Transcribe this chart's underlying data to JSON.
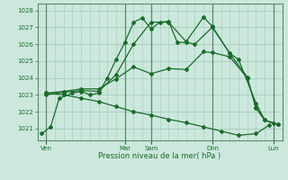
{
  "title": "",
  "xlabel": "Pression niveau de la mer( hPa )",
  "ylabel": "",
  "bg_color": "#cce8dd",
  "grid_color": "#aacfbf",
  "line_color": "#1a6b2a",
  "ylim": [
    1020.3,
    1028.4
  ],
  "xlim": [
    0,
    28
  ],
  "yticks": [
    1021,
    1022,
    1023,
    1024,
    1025,
    1026,
    1027,
    1028
  ],
  "xtick_positions": [
    1,
    10,
    13,
    20,
    27
  ],
  "xtick_labels": [
    "Ven",
    "Mar",
    "Sam",
    "Dim",
    "Lun"
  ],
  "vlines": [
    1,
    10,
    13,
    20,
    27
  ],
  "lines": [
    [
      0.5,
      1020.7,
      1.5,
      1021.1,
      2.5,
      1022.8,
      4,
      1023.1,
      5,
      1023.2,
      6,
      1023.0,
      7,
      1023.1,
      8,
      1024.0,
      9,
      1025.1,
      10,
      1026.1,
      11,
      1027.3,
      12,
      1027.55,
      13,
      1026.9,
      14,
      1027.3,
      15,
      1027.35,
      16,
      1026.1,
      17,
      1026.1,
      18,
      1026.0,
      20,
      1027.0,
      22,
      1025.45,
      23,
      1025.1,
      25,
      1022.5,
      26,
      1021.5,
      27,
      1021.3
    ],
    [
      1,
      1023.0,
      3,
      1023.15,
      5,
      1023.25,
      7,
      1023.2,
      9,
      1024.2,
      11,
      1026.0,
      13,
      1027.3,
      15,
      1027.3,
      17,
      1026.15,
      19,
      1027.6,
      20,
      1027.05,
      22,
      1025.45,
      24,
      1024.05,
      25,
      1022.2,
      26,
      1021.5,
      27.5,
      1021.25
    ],
    [
      1,
      1023.1,
      3,
      1023.2,
      5,
      1023.35,
      7,
      1023.35,
      9,
      1023.95,
      11,
      1024.65,
      13,
      1024.25,
      15,
      1024.55,
      17,
      1024.5,
      19,
      1025.55,
      20,
      1025.5,
      22,
      1025.25,
      24,
      1024.0,
      25,
      1022.25,
      26,
      1021.5,
      27.5,
      1021.25
    ],
    [
      1,
      1023.1,
      3,
      1023.0,
      5,
      1022.8,
      7,
      1022.6,
      9,
      1022.3,
      11,
      1022.0,
      13,
      1021.8,
      15,
      1021.55,
      17,
      1021.35,
      19,
      1021.1,
      21,
      1020.85,
      23,
      1020.6,
      25,
      1020.7,
      26.5,
      1021.2
    ]
  ]
}
